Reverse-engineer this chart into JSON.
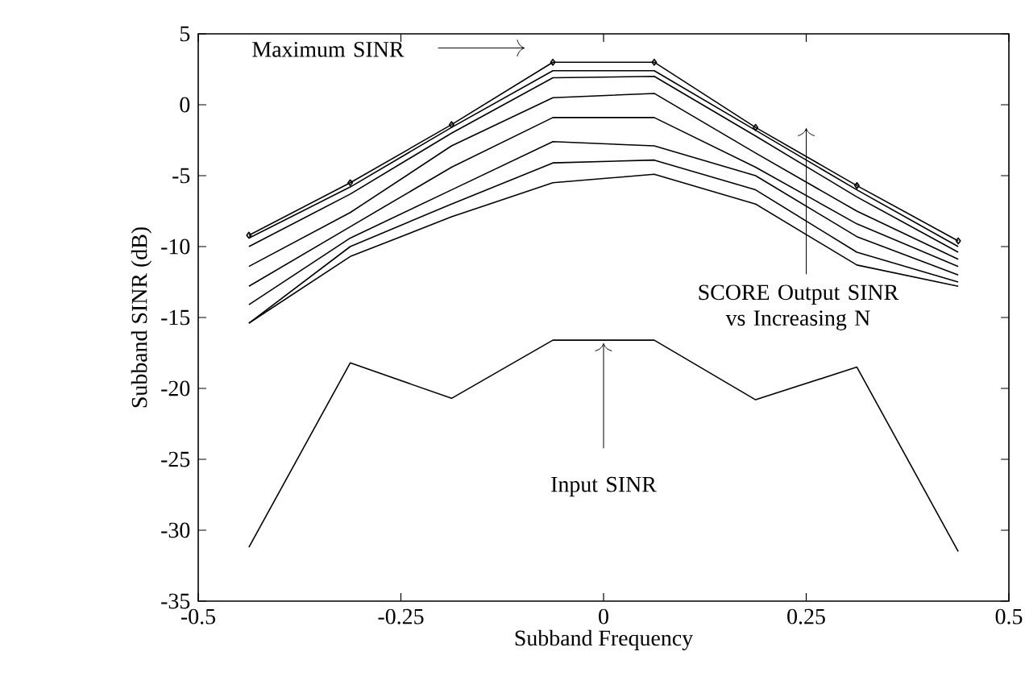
{
  "chart_data": {
    "type": "line",
    "xlabel": "Subband Frequency",
    "ylabel": "Subband SINR (dB)",
    "x": [
      -0.4375,
      -0.3125,
      -0.1875,
      -0.0625,
      0.0625,
      0.1875,
      0.3125,
      0.4375
    ],
    "xlim": [
      -0.5,
      0.5
    ],
    "xticks": [
      -0.5,
      -0.25,
      0,
      0.25,
      0.5
    ],
    "ylim": [
      -35,
      5
    ],
    "yticks": [
      -35,
      -30,
      -25,
      -20,
      -15,
      -10,
      -5,
      0,
      5
    ],
    "grid": false,
    "series": [
      {
        "color": "#000000",
        "marker": "diamond",
        "values": [
          -9.2,
          -5.5,
          -1.4,
          3.0,
          3.0,
          -1.6,
          -5.7,
          -9.6
        ]
      },
      {
        "color": "#000000",
        "values": [
          -9.4,
          -5.8,
          -1.6,
          2.4,
          2.4,
          -1.8,
          -6.0,
          -10.0
        ]
      },
      {
        "color": "#000000",
        "values": [
          -10.0,
          -6.3,
          -2.0,
          1.9,
          2.0,
          -2.2,
          -6.5,
          -10.4
        ]
      },
      {
        "color": "#000000",
        "values": [
          -11.4,
          -7.6,
          -2.9,
          0.5,
          0.8,
          -3.4,
          -7.5,
          -10.9
        ]
      },
      {
        "color": "#000000",
        "values": [
          -12.8,
          -8.6,
          -4.4,
          -0.9,
          -0.9,
          -4.4,
          -8.4,
          -11.4
        ]
      },
      {
        "color": "#000000",
        "values": [
          -14.1,
          -9.4,
          -6.0,
          -2.6,
          -2.9,
          -5.0,
          -9.3,
          -12.0
        ]
      },
      {
        "color": "#000000",
        "values": [
          -15.4,
          -10.0,
          -7.0,
          -4.1,
          -3.9,
          -6.0,
          -10.4,
          -12.5
        ]
      },
      {
        "color": "#000000",
        "values": [
          -15.4,
          -10.7,
          -7.9,
          -5.5,
          -4.9,
          -7.0,
          -11.3,
          -12.8
        ]
      },
      {
        "color": "#000000",
        "values": [
          -31.2,
          -18.2,
          -20.7,
          -16.6,
          -16.6,
          -20.8,
          -18.5,
          -31.5
        ]
      }
    ],
    "annotations": [
      "Maximum SINR",
      "SCORE Output SINR vs Increasing N",
      {
        "text": "Input SINR",
        "x": 0,
        "y": -16.6
      }
    ]
  }
}
